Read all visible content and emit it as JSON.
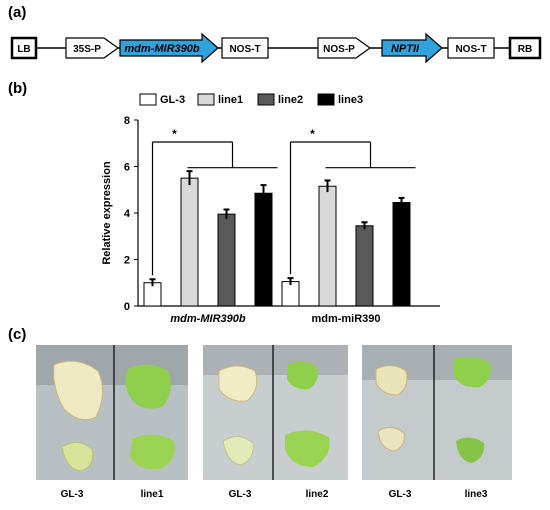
{
  "panel_labels": {
    "a": "(a)",
    "b": "(b)",
    "c": "(c)"
  },
  "construct": {
    "elements": [
      {
        "label": "LB",
        "kind": "border"
      },
      {
        "label": "35S-P",
        "kind": "promoter"
      },
      {
        "label": "mdm-MIR390b",
        "kind": "gene"
      },
      {
        "label": "NOS-T",
        "kind": "box"
      },
      {
        "label": "NOS-P",
        "kind": "promoter"
      },
      {
        "label": "NPTII",
        "kind": "gene"
      },
      {
        "label": "NOS-T",
        "kind": "box"
      },
      {
        "label": "RB",
        "kind": "border"
      }
    ],
    "gene_color": "#2ea3de"
  },
  "chart_data": {
    "type": "bar",
    "categories": [
      "mdm-MIR390b",
      "mdm-miR390"
    ],
    "series": [
      {
        "name": "GL-3",
        "values": [
          1.0,
          1.05
        ],
        "errors": [
          0.15,
          0.15
        ],
        "color": "#ffffff"
      },
      {
        "name": "line1",
        "values": [
          5.5,
          5.15
        ],
        "errors": [
          0.3,
          0.25
        ],
        "color": "#d9d9d9"
      },
      {
        "name": "line2",
        "values": [
          3.95,
          3.45
        ],
        "errors": [
          0.2,
          0.15
        ],
        "color": "#595959"
      },
      {
        "name": "line3",
        "values": [
          4.85,
          4.45
        ],
        "errors": [
          0.35,
          0.2
        ],
        "color": "#000000"
      }
    ],
    "ylabel": "Relative expression",
    "ylim": [
      0,
      8
    ],
    "yticks": [
      0,
      2,
      4,
      6,
      8
    ],
    "significance": [
      "*",
      "*"
    ],
    "legend_position": "top"
  },
  "photos": [
    {
      "left_label": "GL-3",
      "right_label": "line1"
    },
    {
      "left_label": "GL-3",
      "right_label": "line2"
    },
    {
      "left_label": "GL-3",
      "right_label": "line3"
    }
  ]
}
